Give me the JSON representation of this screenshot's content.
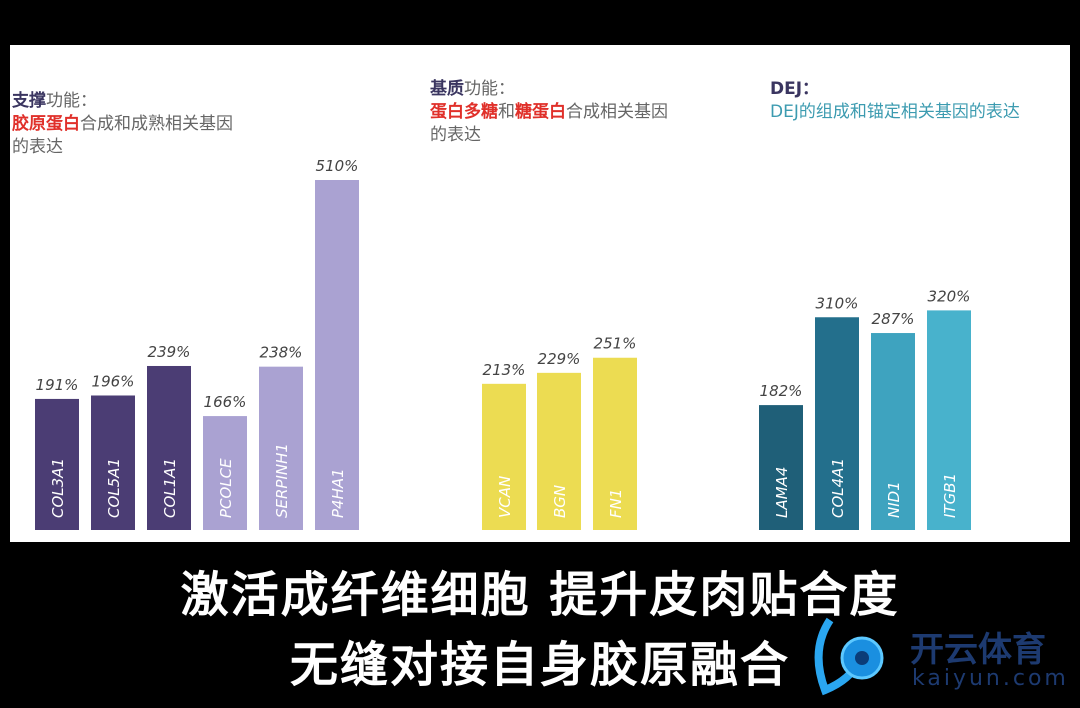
{
  "groups": [
    {
      "title_bold": "支撑",
      "title_rest": "功能：",
      "desc_red": "胶原蛋白",
      "desc_rest": "合成和成熟相关基因",
      "desc_line2": "的表达"
    },
    {
      "title_bold": "基质",
      "title_rest": "功能：",
      "desc_red1": "蛋白多糖",
      "desc_mid": "和",
      "desc_red2": "糖蛋白",
      "desc_rest": "合成相关基因",
      "desc_line2": "的表达"
    },
    {
      "title_bold": "DEJ：",
      "desc": "DEJ的组成和锚定相关基因的表达"
    }
  ],
  "chart_data": {
    "type": "bar",
    "ylabel": "",
    "xlabel": "",
    "unit": "%",
    "ylim": [
      0,
      510
    ],
    "categories": [
      "COL3A1",
      "COL5A1",
      "COL1A1",
      "PCOLCE",
      "SERPINH1",
      "P4HA1",
      "VCAN",
      "BGN",
      "FN1",
      "LAMA4",
      "COL4A1",
      "NID1",
      "ITGB1"
    ],
    "values": [
      191,
      196,
      239,
      166,
      238,
      510,
      213,
      229,
      251,
      182,
      310,
      287,
      320
    ],
    "labels": [
      "191%",
      "196%",
      "239%",
      "166%",
      "238%",
      "510%",
      "213%",
      "229%",
      "251%",
      "182%",
      "310%",
      "287%",
      "320%"
    ],
    "colors": [
      "#4b3d74",
      "#4b3d74",
      "#4b3d74",
      "#aaa2d2",
      "#aaa2d2",
      "#aaa2d2",
      "#ecdc52",
      "#ecdc52",
      "#ecdc52",
      "#1f5f78",
      "#236f8c",
      "#3ea3bf",
      "#48b2cc"
    ]
  },
  "caption": {
    "line1": "激活成纤维细胞  提升皮肉贴合度",
    "line2": "无缝对接自身胶原融合"
  },
  "logo": {
    "name": "开云体育",
    "url_text": "kaiyun.com"
  }
}
